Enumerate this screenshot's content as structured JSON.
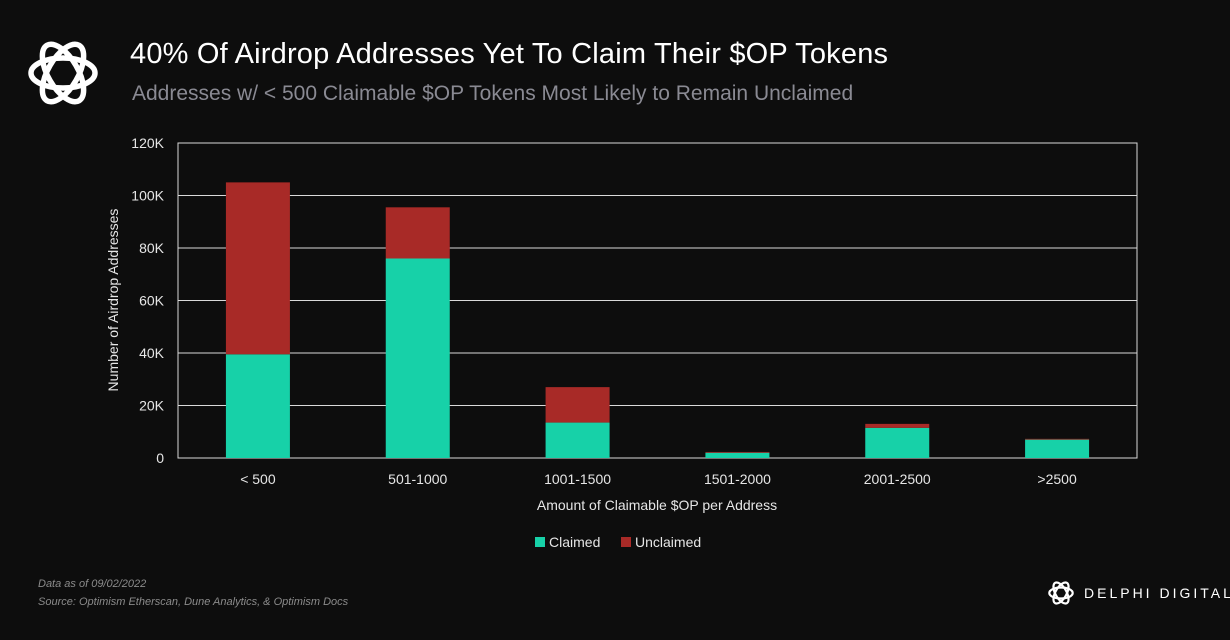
{
  "header": {
    "title": "40% Of Airdrop Addresses Yet To Claim Their $OP Tokens",
    "subtitle": "Addresses w/ < 500 Claimable $OP Tokens Most Likely to Remain Unclaimed"
  },
  "colors": {
    "background": "#0d0d0d",
    "claimed": "#17d1a8",
    "unclaimed": "#a82a27",
    "grid": "#d9d9d9",
    "axis_text": "#e6e6e6"
  },
  "chart_data": {
    "type": "bar",
    "stacked": true,
    "title": "40% Of Airdrop Addresses Yet To Claim Their $OP Tokens",
    "xlabel": "Amount of Claimable $OP per Address",
    "ylabel": "Number of Airdrop Addresses",
    "ylim": [
      0,
      120000
    ],
    "yticks": [
      0,
      20000,
      40000,
      60000,
      80000,
      100000,
      120000
    ],
    "ytick_labels": [
      "0",
      "20K",
      "40K",
      "60K",
      "80K",
      "100K",
      "120K"
    ],
    "categories": [
      "< 500",
      "501-1000",
      "1001-1500",
      "1501-2000",
      "2001-2500",
      ">2500"
    ],
    "series": [
      {
        "name": "Claimed",
        "values": [
          39500,
          76000,
          13500,
          2000,
          11500,
          7000
        ]
      },
      {
        "name": "Unclaimed",
        "values": [
          65500,
          19500,
          13500,
          300,
          1500,
          300
        ]
      }
    ],
    "legend_position": "bottom",
    "grid": true
  },
  "footer": {
    "date_note": "Data as of  09/02/2022",
    "source": "Source: Optimism Etherscan, Dune Analytics, & Optimism Docs",
    "brand": "DELPHI DIGITAL"
  }
}
